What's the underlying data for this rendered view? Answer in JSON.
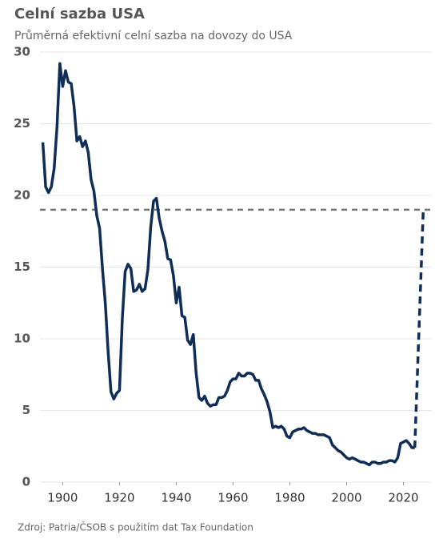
{
  "chart_data": {
    "type": "line",
    "title": "Celní sazba USA",
    "subtitle": "Průměrná efektivní celní sazba na dovozy do USA",
    "source": "Zdroj: Patria/ČSOB s použitím dat  Tax Foundation",
    "xlim": [
      1892,
      2030
    ],
    "xticks": [
      1900,
      1920,
      1940,
      1960,
      1980,
      2000,
      2020
    ],
    "ylim": [
      0,
      30
    ],
    "yticks": [
      0,
      5,
      10,
      15,
      20,
      25,
      30
    ],
    "grid": true,
    "reference_line": {
      "value": 19,
      "color": "#777777",
      "dashed": true
    },
    "series": [
      {
        "color": "#0f2d57",
        "dashed": false,
        "x": [
          1893,
          1894,
          1895,
          1896,
          1897,
          1898,
          1899,
          1900,
          1901,
          1902,
          1903,
          1904,
          1905,
          1906,
          1907,
          1908,
          1909,
          1910,
          1911,
          1912,
          1913,
          1914,
          1915,
          1916,
          1917,
          1918,
          1919,
          1920,
          1921,
          1922,
          1923,
          1924,
          1925,
          1926,
          1927,
          1928,
          1929,
          1930,
          1931,
          1932,
          1933,
          1934,
          1935,
          1936,
          1937,
          1938,
          1939,
          1940,
          1941,
          1942,
          1943,
          1944,
          1945,
          1946,
          1947,
          1948,
          1949,
          1950,
          1951,
          1952,
          1953,
          1954,
          1955,
          1956,
          1957,
          1958,
          1959,
          1960,
          1961,
          1962,
          1963,
          1964,
          1965,
          1966,
          1967,
          1968,
          1969,
          1970,
          1971,
          1972,
          1973,
          1974,
          1975,
          1976,
          1977,
          1978,
          1979,
          1980,
          1981,
          1982,
          1983,
          1984,
          1985,
          1986,
          1987,
          1988,
          1989,
          1990,
          1991,
          1992,
          1993,
          1994,
          1995,
          1996,
          1997,
          1998,
          1999,
          2000,
          2001,
          2002,
          2003,
          2004,
          2005,
          2006,
          2007,
          2008,
          2009,
          2010,
          2011,
          2012,
          2013,
          2014,
          2015,
          2016,
          2017,
          2018,
          2019,
          2020,
          2021,
          2022,
          2023,
          2024
        ],
        "values": [
          23.7,
          20.6,
          20.2,
          20.6,
          21.9,
          24.8,
          29.2,
          27.6,
          28.7,
          27.9,
          27.8,
          26.2,
          23.8,
          24.1,
          23.4,
          23.8,
          23.0,
          21.1,
          20.3,
          18.6,
          17.7,
          14.9,
          12.5,
          9.1,
          6.3,
          5.8,
          6.2,
          6.4,
          11.4,
          14.7,
          15.2,
          14.9,
          13.3,
          13.4,
          13.8,
          13.3,
          13.5,
          14.8,
          17.8,
          19.6,
          19.8,
          18.4,
          17.5,
          16.8,
          15.6,
          15.5,
          14.4,
          12.5,
          13.6,
          11.6,
          11.5,
          9.9,
          9.6,
          10.3,
          7.6,
          5.9,
          5.7,
          6.0,
          5.5,
          5.3,
          5.4,
          5.4,
          5.9,
          5.9,
          6.0,
          6.4,
          7.0,
          7.2,
          7.2,
          7.6,
          7.4,
          7.4,
          7.6,
          7.6,
          7.5,
          7.1,
          7.1,
          6.5,
          6.1,
          5.6,
          4.9,
          3.8,
          3.9,
          3.8,
          3.9,
          3.7,
          3.2,
          3.1,
          3.5,
          3.6,
          3.7,
          3.7,
          3.8,
          3.6,
          3.5,
          3.4,
          3.4,
          3.3,
          3.3,
          3.3,
          3.2,
          3.1,
          2.6,
          2.4,
          2.2,
          2.1,
          1.9,
          1.7,
          1.6,
          1.7,
          1.6,
          1.5,
          1.4,
          1.4,
          1.3,
          1.2,
          1.4,
          1.4,
          1.3,
          1.3,
          1.4,
          1.4,
          1.5,
          1.5,
          1.4,
          1.7,
          2.7,
          2.8,
          2.9,
          2.7,
          2.4,
          2.4
        ]
      },
      {
        "color": "#0f2d57",
        "dashed": true,
        "x": [
          2024,
          2027
        ],
        "values": [
          2.4,
          19
        ]
      }
    ]
  }
}
